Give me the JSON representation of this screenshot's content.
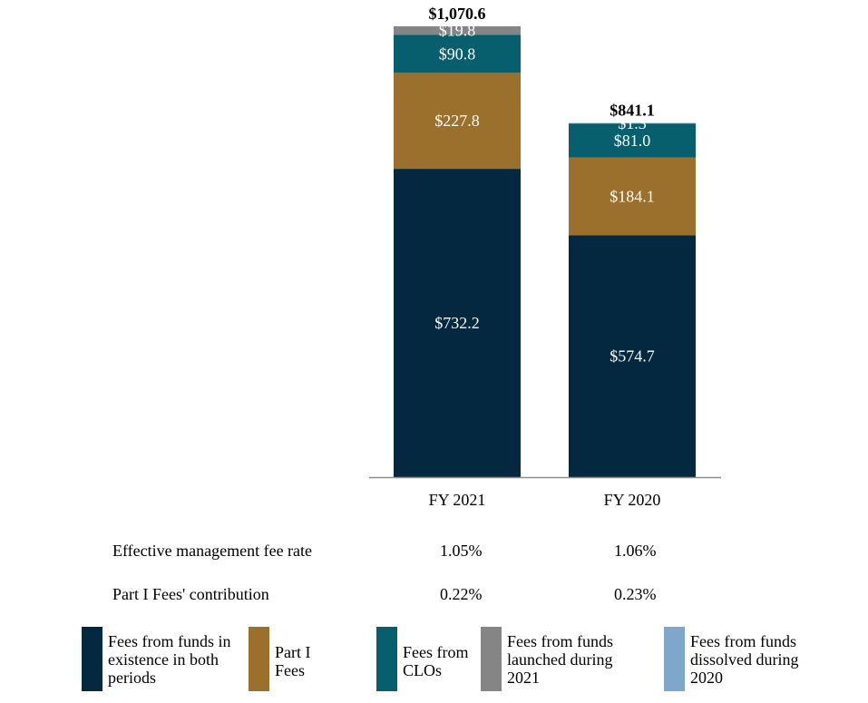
{
  "chart_data": {
    "type": "bar",
    "stacked": true,
    "categories": [
      "FY 2021",
      "FY 2020"
    ],
    "totals": [
      "$1,070.6",
      "$841.1"
    ],
    "series": [
      {
        "name": "Fees from funds in existence in both periods",
        "values": [
          732.2,
          574.7
        ],
        "labels": [
          "$732.2",
          "$574.7"
        ],
        "color": "#032840"
      },
      {
        "name": "Part I Fees",
        "values": [
          227.8,
          184.1
        ],
        "labels": [
          "$227.8",
          "$184.1"
        ],
        "color": "#9b6f2c"
      },
      {
        "name": "Fees from CLOs",
        "values": [
          90.8,
          81.0
        ],
        "labels": [
          "$90.8",
          "$81.0"
        ],
        "color": "#075f6e"
      },
      {
        "name": "Fees from funds launched during 2021",
        "values": [
          19.8,
          0
        ],
        "labels": [
          "$19.8",
          ""
        ],
        "color": "#858585"
      },
      {
        "name": "Fees from funds dissolved during 2020",
        "values": [
          0,
          1.3
        ],
        "labels": [
          "",
          "$1.3"
        ],
        "color": "#7fa7cb"
      }
    ],
    "ylim": [
      0,
      1070.6
    ],
    "grid": false,
    "legend": "bottom"
  },
  "metrics": [
    {
      "label": "Effective management fee rate",
      "values": [
        "1.05%",
        "1.06%"
      ]
    },
    {
      "label": "Part I Fees' contribution",
      "values": [
        "0.22%",
        "0.23%"
      ]
    }
  ],
  "legend": [
    {
      "text": "Fees from funds in existence in both periods",
      "color": "#032840"
    },
    {
      "text": "Part I Fees",
      "color": "#9b6f2c"
    },
    {
      "text": "Fees from CLOs",
      "color": "#075f6e"
    },
    {
      "text": "Fees from funds launched during 2021",
      "color": "#858585"
    },
    {
      "text": "Fees from funds dissolved during 2020",
      "color": "#7fa7cb"
    }
  ]
}
